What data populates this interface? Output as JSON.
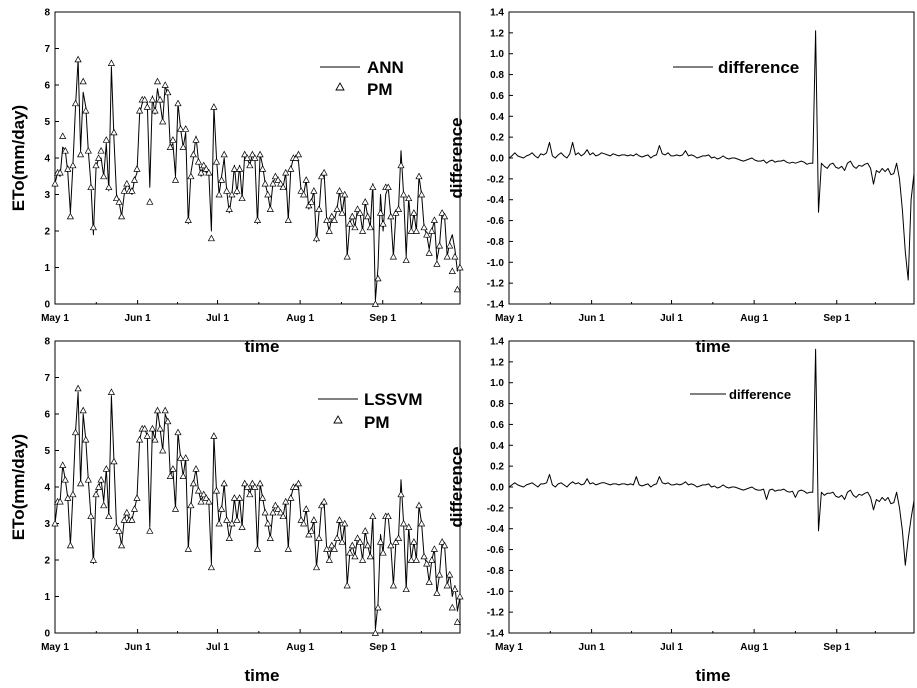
{
  "chart_data": [
    {
      "type": "line",
      "xlabel": "time",
      "ylabel": "ETo(mm/day)",
      "x_tick_labels": [
        "May 1",
        "Jun 1",
        "Jul 1",
        "Aug 1",
        "Sep 1"
      ],
      "x_tick_days": [
        0,
        31,
        61,
        92,
        123
      ],
      "xlim_days": [
        0,
        152
      ],
      "ylim": [
        0,
        8
      ],
      "y_ticks": [
        0,
        1,
        2,
        3,
        4,
        5,
        6,
        7,
        8
      ],
      "legend": "top-right",
      "series": [
        {
          "name": "ANN",
          "style": "line",
          "color": "#000000",
          "values": [
            3.3,
            3.6,
            3.5,
            4.3,
            4.2,
            3.6,
            2.5,
            3.8,
            5.4,
            6.7,
            4.2,
            5.8,
            5.4,
            4.2,
            3.3,
            1.9,
            3.7,
            4.0,
            4.0,
            3.5,
            4.4,
            3.1,
            6.5,
            4.5,
            3.0,
            2.8,
            2.4,
            3.0,
            3.3,
            3.2,
            3.0,
            3.4,
            3.6,
            5.2,
            5.5,
            5.6,
            5.5,
            3.2,
            5.7,
            5.2,
            5.9,
            5.5,
            5.0,
            6.0,
            5.7,
            4.3,
            4.4,
            3.5,
            5.5,
            4.8,
            4.3,
            4.7,
            2.2,
            3.6,
            4.0,
            4.6,
            3.9,
            3.5,
            3.8,
            3.6,
            3.6,
            2.0,
            5.4,
            4.0,
            3.0,
            3.5,
            4.0,
            3.1,
            2.5,
            3.0,
            3.8,
            3.0,
            3.8,
            2.9,
            4.1,
            4.0,
            3.8,
            4.1,
            4.0,
            2.2,
            4.1,
            3.8,
            3.3,
            3.0,
            2.6,
            3.3,
            3.5,
            3.4,
            3.3,
            3.2,
            3.6,
            2.3,
            3.7,
            4.0,
            4.0,
            3.9,
            3.1,
            3.0,
            3.4,
            2.6,
            2.8,
            3.1,
            1.7,
            2.5,
            3.5,
            3.6,
            2.3,
            2.0,
            2.4,
            2.3,
            2.6,
            3.1,
            2.5,
            3.0,
            1.3,
            2.2,
            2.4,
            2.1,
            2.6,
            2.5,
            2.0,
            2.8,
            2.4,
            2.1,
            3.3,
            0.1,
            1.0,
            3.0,
            2.0,
            3.0,
            3.2,
            2.4,
            1.3,
            2.5,
            2.6,
            4.2,
            3.0,
            1.3,
            2.9,
            2.0,
            2.5,
            2.0,
            3.5,
            3.0,
            2.1,
            1.9,
            1.5,
            2.0,
            2.3,
            1.2,
            1.6,
            2.5,
            2.4,
            1.3,
            1.7,
            1.9,
            1.5,
            0.9,
            1.1
          ]
        },
        {
          "name": "PM",
          "style": "triangle",
          "color": "#000000",
          "values": [
            3.3,
            3.6,
            3.6,
            4.6,
            4.2,
            3.7,
            2.4,
            3.8,
            5.5,
            6.7,
            4.1,
            6.1,
            5.3,
            4.2,
            3.2,
            2.1,
            3.8,
            4.0,
            4.2,
            3.5,
            4.5,
            3.2,
            6.6,
            4.7,
            2.9,
            2.8,
            2.4,
            3.1,
            3.3,
            3.1,
            3.1,
            3.4,
            3.7,
            5.3,
            5.6,
            5.6,
            5.4,
            2.8,
            5.6,
            5.3,
            6.1,
            5.6,
            5.0,
            6.0,
            5.8,
            4.3,
            4.5,
            3.4,
            5.5,
            4.8,
            4.3,
            4.8,
            2.3,
            3.5,
            4.1,
            4.5,
            3.9,
            3.6,
            3.8,
            3.7,
            3.6,
            1.8,
            5.4,
            3.9,
            3.0,
            3.4,
            4.1,
            3.1,
            2.6,
            3.0,
            3.7,
            3.1,
            3.7,
            2.9,
            4.1,
            4.0,
            3.8,
            4.1,
            4.0,
            2.3,
            4.1,
            3.7,
            3.3,
            3.0,
            2.6,
            3.3,
            3.5,
            3.4,
            3.3,
            3.2,
            3.6,
            2.3,
            3.7,
            4.0,
            4.0,
            4.1,
            3.1,
            3.0,
            3.4,
            2.7,
            2.8,
            3.1,
            1.8,
            2.6,
            3.5,
            3.6,
            2.3,
            2.0,
            2.4,
            2.3,
            2.6,
            3.1,
            2.5,
            3.0,
            1.3,
            2.2,
            2.4,
            2.1,
            2.6,
            2.5,
            2.0,
            2.8,
            2.4,
            2.1,
            3.2,
            0.0,
            0.7,
            2.5,
            2.2,
            3.2,
            3.2,
            2.4,
            1.3,
            2.5,
            2.6,
            3.8,
            3.0,
            1.2,
            2.9,
            2.0,
            2.5,
            2.0,
            3.5,
            3.0,
            2.1,
            1.9,
            1.4,
            2.0,
            2.3,
            1.1,
            1.6,
            2.5,
            2.4,
            1.3,
            1.6,
            0.9,
            1.3,
            0.4,
            1.0
          ]
        }
      ]
    },
    {
      "type": "line",
      "xlabel": "time",
      "ylabel": "difference",
      "x_tick_labels": [
        "May 1",
        "Jun 1",
        "Jul 1",
        "Aug 1",
        "Sep 1"
      ],
      "x_tick_days": [
        0,
        31,
        61,
        92,
        123
      ],
      "xlim_days": [
        0,
        152
      ],
      "ylim": [
        -1.4,
        1.4
      ],
      "y_ticks": [
        -1.4,
        -1.2,
        -1.0,
        -0.8,
        -0.6,
        -0.4,
        -0.2,
        0.0,
        0.2,
        0.4,
        0.6,
        0.8,
        1.0,
        1.2,
        1.4
      ],
      "legend": "top-center",
      "series": [
        {
          "name": "difference",
          "style": "line",
          "color": "#000000",
          "values": [
            0.0,
            0.02,
            0.05,
            0.02,
            0.01,
            0.0,
            0.02,
            0.03,
            0.05,
            0.02,
            0.0,
            0.04,
            0.03,
            0.05,
            0.15,
            0.02,
            0.0,
            0.03,
            0.05,
            0.02,
            0.0,
            0.04,
            0.15,
            0.03,
            0.05,
            0.02,
            0.04,
            0.08,
            0.03,
            0.05,
            0.02,
            0.03,
            0.05,
            0.04,
            0.03,
            0.02,
            0.04,
            0.03,
            0.02,
            0.03,
            0.03,
            0.02,
            0.03,
            0.02,
            0.04,
            0.02,
            0.01,
            0.02,
            0.03,
            0.0,
            0.02,
            0.03,
            0.12,
            0.04,
            0.03,
            0.05,
            0.02,
            0.02,
            0.03,
            0.02,
            0.03,
            0.07,
            0.02,
            0.03,
            0.02,
            0.0,
            0.01,
            0.02,
            0.02,
            0.03,
            0.0,
            0.01,
            -0.01,
            0.0,
            0.02,
            0.0,
            -0.01,
            0.0,
            0.0,
            -0.01,
            -0.02,
            -0.03,
            -0.02,
            -0.01,
            0.0,
            -0.02,
            -0.03,
            -0.03,
            -0.02,
            -0.05,
            -0.03,
            -0.02,
            -0.04,
            -0.03,
            -0.03,
            -0.02,
            -0.04,
            -0.05,
            -0.04,
            -0.05,
            -0.04,
            -0.03,
            -0.04,
            -0.06,
            -0.05,
            -0.05,
            1.22,
            -0.52,
            -0.05,
            -0.08,
            -0.1,
            -0.06,
            -0.05,
            -0.09,
            -0.1,
            -0.08,
            -0.12,
            -0.05,
            -0.03,
            -0.08,
            -0.1,
            -0.07,
            -0.08,
            -0.06,
            -0.05,
            -0.1,
            -0.25,
            -0.12,
            -0.14,
            -0.1,
            -0.13,
            -0.1,
            -0.16,
            -0.15,
            -0.05,
            -0.2,
            -0.5,
            -0.9,
            -1.17,
            -0.4,
            -0.15
          ]
        }
      ]
    },
    {
      "type": "line",
      "xlabel": "time",
      "ylabel": "ETo(mm/day)",
      "x_tick_labels": [
        "May 1",
        "Jun 1",
        "Jul 1",
        "Aug 1",
        "Sep 1"
      ],
      "x_tick_days": [
        0,
        31,
        61,
        92,
        123
      ],
      "xlim_days": [
        0,
        152
      ],
      "ylim": [
        0,
        8
      ],
      "y_ticks": [
        0,
        1,
        2,
        3,
        4,
        5,
        6,
        7,
        8
      ],
      "legend": "top-right",
      "series": [
        {
          "name": "LSSVM",
          "style": "line",
          "color": "#000000",
          "values": [
            3.0,
            3.6,
            3.6,
            4.6,
            4.2,
            3.7,
            2.4,
            3.8,
            5.5,
            6.6,
            4.1,
            6.0,
            5.3,
            4.2,
            3.2,
            1.9,
            3.8,
            4.0,
            4.2,
            3.6,
            4.5,
            3.2,
            6.5,
            4.7,
            2.9,
            2.8,
            2.4,
            3.1,
            3.3,
            3.1,
            3.1,
            3.4,
            3.7,
            5.3,
            5.6,
            5.6,
            5.4,
            2.9,
            5.6,
            5.3,
            6.1,
            5.6,
            5.0,
            6.0,
            5.8,
            4.3,
            4.5,
            3.4,
            5.5,
            4.8,
            4.3,
            4.8,
            2.3,
            3.5,
            4.1,
            4.5,
            3.9,
            3.6,
            3.8,
            3.7,
            3.6,
            1.9,
            5.4,
            3.9,
            3.0,
            3.4,
            4.1,
            3.1,
            2.6,
            3.0,
            3.7,
            3.1,
            3.7,
            2.9,
            4.1,
            4.0,
            3.8,
            4.1,
            4.0,
            2.3,
            4.1,
            3.7,
            3.3,
            3.0,
            2.6,
            3.3,
            3.5,
            3.4,
            3.3,
            3.2,
            3.6,
            2.3,
            3.7,
            4.0,
            4.0,
            4.0,
            3.1,
            3.0,
            3.4,
            2.7,
            2.8,
            3.1,
            1.8,
            2.6,
            3.5,
            3.6,
            2.3,
            2.0,
            2.4,
            2.3,
            2.6,
            3.1,
            2.5,
            3.0,
            1.3,
            2.2,
            2.4,
            2.1,
            2.6,
            2.5,
            2.0,
            2.8,
            2.4,
            2.1,
            3.2,
            0.1,
            0.8,
            2.7,
            2.2,
            3.2,
            3.2,
            2.4,
            1.3,
            2.5,
            2.6,
            4.2,
            3.0,
            1.2,
            2.9,
            2.0,
            2.5,
            2.0,
            3.5,
            3.0,
            2.1,
            1.9,
            1.4,
            2.0,
            2.3,
            1.1,
            1.6,
            2.5,
            2.4,
            1.3,
            1.6,
            1.0,
            1.3,
            0.6,
            1.0
          ]
        },
        {
          "name": "PM",
          "style": "triangle",
          "color": "#000000",
          "values": [
            3.0,
            3.6,
            3.6,
            4.6,
            4.2,
            3.7,
            2.4,
            3.8,
            5.5,
            6.7,
            4.1,
            6.1,
            5.3,
            4.2,
            3.2,
            2.0,
            3.8,
            4.0,
            4.2,
            3.5,
            4.5,
            3.2,
            6.6,
            4.7,
            2.9,
            2.8,
            2.4,
            3.1,
            3.3,
            3.1,
            3.1,
            3.4,
            3.7,
            5.3,
            5.6,
            5.6,
            5.4,
            2.8,
            5.6,
            5.3,
            6.1,
            5.6,
            5.0,
            6.1,
            5.8,
            4.3,
            4.5,
            3.4,
            5.5,
            4.8,
            4.3,
            4.8,
            2.3,
            3.5,
            4.1,
            4.5,
            3.9,
            3.6,
            3.8,
            3.7,
            3.6,
            1.8,
            5.4,
            3.9,
            3.0,
            3.4,
            4.1,
            3.1,
            2.6,
            3.0,
            3.7,
            3.1,
            3.7,
            2.9,
            4.1,
            4.0,
            3.8,
            4.1,
            4.0,
            2.3,
            4.1,
            3.7,
            3.3,
            3.0,
            2.6,
            3.3,
            3.5,
            3.4,
            3.3,
            3.2,
            3.6,
            2.3,
            3.7,
            4.0,
            4.0,
            4.1,
            3.1,
            3.0,
            3.4,
            2.7,
            2.8,
            3.1,
            1.8,
            2.6,
            3.5,
            3.6,
            2.3,
            2.0,
            2.4,
            2.3,
            2.6,
            3.1,
            2.5,
            3.0,
            1.3,
            2.2,
            2.4,
            2.1,
            2.6,
            2.5,
            2.0,
            2.8,
            2.4,
            2.1,
            3.2,
            0.0,
            0.7,
            2.5,
            2.2,
            3.2,
            3.2,
            2.4,
            1.3,
            2.5,
            2.6,
            3.8,
            3.0,
            1.2,
            2.9,
            2.0,
            2.5,
            2.0,
            3.5,
            3.0,
            2.1,
            1.9,
            1.4,
            2.0,
            2.3,
            1.1,
            1.6,
            2.5,
            2.4,
            1.3,
            1.6,
            0.7,
            1.2,
            0.3,
            1.0
          ]
        }
      ]
    },
    {
      "type": "line",
      "xlabel": "time",
      "ylabel": "difference",
      "x_tick_labels": [
        "May 1",
        "Jun 1",
        "Jul 1",
        "Aug 1",
        "Sep 1"
      ],
      "x_tick_days": [
        0,
        31,
        61,
        92,
        123
      ],
      "xlim_days": [
        0,
        152
      ],
      "ylim": [
        -1.4,
        1.4
      ],
      "y_ticks": [
        -1.4,
        -1.2,
        -1.0,
        -0.8,
        -0.6,
        -0.4,
        -0.2,
        0.0,
        0.2,
        0.4,
        0.6,
        0.8,
        1.0,
        1.2,
        1.4
      ],
      "legend": "top-center",
      "series": [
        {
          "name": "difference",
          "style": "line",
          "color": "#000000",
          "values": [
            0.0,
            0.02,
            0.04,
            0.02,
            0.01,
            0.0,
            0.02,
            0.03,
            0.04,
            0.02,
            0.0,
            0.03,
            0.03,
            0.04,
            0.12,
            0.02,
            0.0,
            0.03,
            0.04,
            0.02,
            0.0,
            0.03,
            0.05,
            0.03,
            0.04,
            0.02,
            0.03,
            0.08,
            0.03,
            0.04,
            0.02,
            0.03,
            0.04,
            0.04,
            0.03,
            0.02,
            0.03,
            0.03,
            0.02,
            0.03,
            0.03,
            0.02,
            0.03,
            0.02,
            0.1,
            0.02,
            0.01,
            0.02,
            0.03,
            0.0,
            0.02,
            0.03,
            0.1,
            0.04,
            0.03,
            0.04,
            0.02,
            0.02,
            0.03,
            0.02,
            0.03,
            0.05,
            0.02,
            0.03,
            0.02,
            0.0,
            0.01,
            0.02,
            0.02,
            0.03,
            0.0,
            0.01,
            -0.01,
            0.0,
            0.02,
            0.0,
            -0.01,
            0.0,
            0.0,
            -0.01,
            -0.02,
            -0.03,
            -0.02,
            -0.01,
            0.0,
            -0.02,
            -0.03,
            -0.03,
            -0.02,
            -0.12,
            -0.03,
            -0.02,
            -0.04,
            -0.03,
            -0.03,
            -0.02,
            -0.04,
            -0.05,
            -0.04,
            -0.1,
            -0.04,
            -0.03,
            -0.04,
            -0.06,
            -0.05,
            -0.05,
            1.32,
            -0.42,
            -0.05,
            -0.08,
            -0.06,
            -0.06,
            -0.05,
            -0.09,
            -0.1,
            -0.08,
            -0.12,
            -0.05,
            -0.03,
            -0.08,
            -0.1,
            -0.07,
            -0.08,
            -0.06,
            -0.05,
            -0.1,
            -0.22,
            -0.12,
            -0.14,
            -0.1,
            -0.13,
            -0.1,
            -0.16,
            -0.15,
            -0.05,
            -0.2,
            -0.42,
            -0.75,
            -0.5,
            -0.3,
            -0.13
          ]
        }
      ]
    }
  ]
}
